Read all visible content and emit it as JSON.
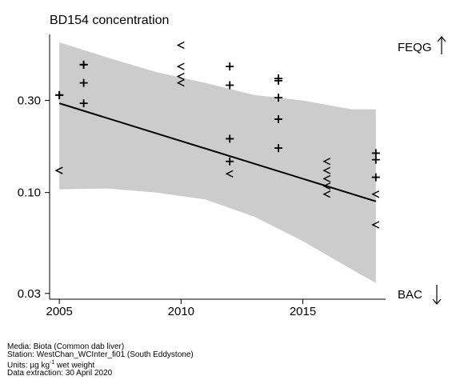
{
  "chart_data": {
    "type": "scatter",
    "title": "BD154 concentration",
    "xlabel": "",
    "ylabel": "",
    "y_scale": "log",
    "xlim": [
      2004.6,
      2018.4
    ],
    "ylim": [
      0.028,
      0.66
    ],
    "x_ticks": [
      2005,
      2010,
      2015
    ],
    "x_tick_labels": [
      "2005",
      "2010",
      "2015"
    ],
    "y_ticks": [
      0.03,
      0.1,
      0.3
    ],
    "y_tick_labels": [
      "0.03",
      "0.10",
      "0.30"
    ],
    "grid": false,
    "series": [
      {
        "marker": "plus",
        "points": [
          {
            "x": 2005,
            "y": 0.32
          },
          {
            "x": 2005,
            "y": 0.32
          },
          {
            "x": 2006,
            "y": 0.46
          },
          {
            "x": 2006,
            "y": 0.46
          },
          {
            "x": 2006,
            "y": 0.37
          },
          {
            "x": 2006,
            "y": 0.29
          },
          {
            "x": 2012,
            "y": 0.45
          },
          {
            "x": 2012,
            "y": 0.36
          },
          {
            "x": 2012,
            "y": 0.19
          },
          {
            "x": 2012,
            "y": 0.145
          },
          {
            "x": 2014,
            "y": 0.39
          },
          {
            "x": 2014,
            "y": 0.38
          },
          {
            "x": 2014,
            "y": 0.31
          },
          {
            "x": 2014,
            "y": 0.24
          },
          {
            "x": 2014,
            "y": 0.17
          },
          {
            "x": 2018,
            "y": 0.16
          },
          {
            "x": 2018,
            "y": 0.148
          },
          {
            "x": 2018,
            "y": 0.12
          }
        ]
      },
      {
        "marker": "less-than",
        "points": [
          {
            "x": 2005,
            "y": 0.13
          },
          {
            "x": 2005,
            "y": 0.13
          },
          {
            "x": 2010,
            "y": 0.58
          },
          {
            "x": 2010,
            "y": 0.45
          },
          {
            "x": 2010,
            "y": 0.4
          },
          {
            "x": 2010,
            "y": 0.37
          },
          {
            "x": 2012,
            "y": 0.125
          },
          {
            "x": 2016,
            "y": 0.145
          },
          {
            "x": 2016,
            "y": 0.13
          },
          {
            "x": 2016,
            "y": 0.118
          },
          {
            "x": 2016,
            "y": 0.108
          },
          {
            "x": 2016,
            "y": 0.098
          },
          {
            "x": 2018,
            "y": 0.098
          },
          {
            "x": 2018,
            "y": 0.068
          }
        ]
      }
    ],
    "trend": {
      "x": [
        2005,
        2018
      ],
      "y": [
        0.29,
        0.09
      ]
    },
    "confidence_band": {
      "x": [
        2005,
        2007,
        2009,
        2011,
        2013,
        2015,
        2017,
        2018
      ],
      "upper": [
        0.6,
        0.5,
        0.42,
        0.37,
        0.32,
        0.3,
        0.27,
        0.27
      ],
      "lower": [
        0.104,
        0.105,
        0.1,
        0.092,
        0.075,
        0.056,
        0.04,
        0.034
      ]
    },
    "colors": {
      "band": "#cccccc",
      "line": "#000000",
      "markers": "#000000"
    }
  },
  "side_labels": {
    "top": "FEQG",
    "bottom": "BAC",
    "top_arrow": "up-arrow-icon",
    "bottom_arrow": "down-arrow-icon"
  },
  "footer": {
    "media": "Media: Biota (Common dab liver)",
    "station": "Station: WestChan_WCInter_fi01 (South Eddystone)",
    "units_prefix": "Units: ",
    "units_mu": "µg kg",
    "units_sup": "-1",
    "units_suffix": " wet weight",
    "extraction": "Data extraction: 30 April 2020"
  }
}
